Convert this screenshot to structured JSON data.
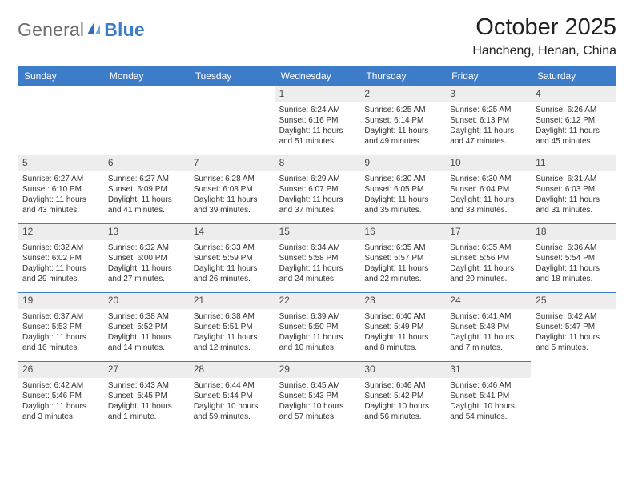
{
  "logo": {
    "general": "General",
    "blue": "Blue"
  },
  "title": "October 2025",
  "location": "Hancheng, Henan, China",
  "dayHeaders": [
    "Sunday",
    "Monday",
    "Tuesday",
    "Wednesday",
    "Thursday",
    "Friday",
    "Saturday"
  ],
  "colors": {
    "headerBlue": "#3d7cc9",
    "bandGray": "#ededed",
    "text": "#333333",
    "logoGray": "#6c6c6c"
  },
  "layout": {
    "cols": 7,
    "leadingBlanks": 3,
    "cellFontSize": 10,
    "headerFontSize": 12
  },
  "days": [
    {
      "n": "1",
      "sunrise": "6:24 AM",
      "sunset": "6:16 PM",
      "daylight": "11 hours and 51 minutes."
    },
    {
      "n": "2",
      "sunrise": "6:25 AM",
      "sunset": "6:14 PM",
      "daylight": "11 hours and 49 minutes."
    },
    {
      "n": "3",
      "sunrise": "6:25 AM",
      "sunset": "6:13 PM",
      "daylight": "11 hours and 47 minutes."
    },
    {
      "n": "4",
      "sunrise": "6:26 AM",
      "sunset": "6:12 PM",
      "daylight": "11 hours and 45 minutes."
    },
    {
      "n": "5",
      "sunrise": "6:27 AM",
      "sunset": "6:10 PM",
      "daylight": "11 hours and 43 minutes."
    },
    {
      "n": "6",
      "sunrise": "6:27 AM",
      "sunset": "6:09 PM",
      "daylight": "11 hours and 41 minutes."
    },
    {
      "n": "7",
      "sunrise": "6:28 AM",
      "sunset": "6:08 PM",
      "daylight": "11 hours and 39 minutes."
    },
    {
      "n": "8",
      "sunrise": "6:29 AM",
      "sunset": "6:07 PM",
      "daylight": "11 hours and 37 minutes."
    },
    {
      "n": "9",
      "sunrise": "6:30 AM",
      "sunset": "6:05 PM",
      "daylight": "11 hours and 35 minutes."
    },
    {
      "n": "10",
      "sunrise": "6:30 AM",
      "sunset": "6:04 PM",
      "daylight": "11 hours and 33 minutes."
    },
    {
      "n": "11",
      "sunrise": "6:31 AM",
      "sunset": "6:03 PM",
      "daylight": "11 hours and 31 minutes."
    },
    {
      "n": "12",
      "sunrise": "6:32 AM",
      "sunset": "6:02 PM",
      "daylight": "11 hours and 29 minutes."
    },
    {
      "n": "13",
      "sunrise": "6:32 AM",
      "sunset": "6:00 PM",
      "daylight": "11 hours and 27 minutes."
    },
    {
      "n": "14",
      "sunrise": "6:33 AM",
      "sunset": "5:59 PM",
      "daylight": "11 hours and 26 minutes."
    },
    {
      "n": "15",
      "sunrise": "6:34 AM",
      "sunset": "5:58 PM",
      "daylight": "11 hours and 24 minutes."
    },
    {
      "n": "16",
      "sunrise": "6:35 AM",
      "sunset": "5:57 PM",
      "daylight": "11 hours and 22 minutes."
    },
    {
      "n": "17",
      "sunrise": "6:35 AM",
      "sunset": "5:56 PM",
      "daylight": "11 hours and 20 minutes."
    },
    {
      "n": "18",
      "sunrise": "6:36 AM",
      "sunset": "5:54 PM",
      "daylight": "11 hours and 18 minutes."
    },
    {
      "n": "19",
      "sunrise": "6:37 AM",
      "sunset": "5:53 PM",
      "daylight": "11 hours and 16 minutes."
    },
    {
      "n": "20",
      "sunrise": "6:38 AM",
      "sunset": "5:52 PM",
      "daylight": "11 hours and 14 minutes."
    },
    {
      "n": "21",
      "sunrise": "6:38 AM",
      "sunset": "5:51 PM",
      "daylight": "11 hours and 12 minutes."
    },
    {
      "n": "22",
      "sunrise": "6:39 AM",
      "sunset": "5:50 PM",
      "daylight": "11 hours and 10 minutes."
    },
    {
      "n": "23",
      "sunrise": "6:40 AM",
      "sunset": "5:49 PM",
      "daylight": "11 hours and 8 minutes."
    },
    {
      "n": "24",
      "sunrise": "6:41 AM",
      "sunset": "5:48 PM",
      "daylight": "11 hours and 7 minutes."
    },
    {
      "n": "25",
      "sunrise": "6:42 AM",
      "sunset": "5:47 PM",
      "daylight": "11 hours and 5 minutes."
    },
    {
      "n": "26",
      "sunrise": "6:42 AM",
      "sunset": "5:46 PM",
      "daylight": "11 hours and 3 minutes."
    },
    {
      "n": "27",
      "sunrise": "6:43 AM",
      "sunset": "5:45 PM",
      "daylight": "11 hours and 1 minute."
    },
    {
      "n": "28",
      "sunrise": "6:44 AM",
      "sunset": "5:44 PM",
      "daylight": "10 hours and 59 minutes."
    },
    {
      "n": "29",
      "sunrise": "6:45 AM",
      "sunset": "5:43 PM",
      "daylight": "10 hours and 57 minutes."
    },
    {
      "n": "30",
      "sunrise": "6:46 AM",
      "sunset": "5:42 PM",
      "daylight": "10 hours and 56 minutes."
    },
    {
      "n": "31",
      "sunrise": "6:46 AM",
      "sunset": "5:41 PM",
      "daylight": "10 hours and 54 minutes."
    }
  ],
  "labels": {
    "sunrise": "Sunrise:",
    "sunset": "Sunset:",
    "daylight": "Daylight:"
  }
}
